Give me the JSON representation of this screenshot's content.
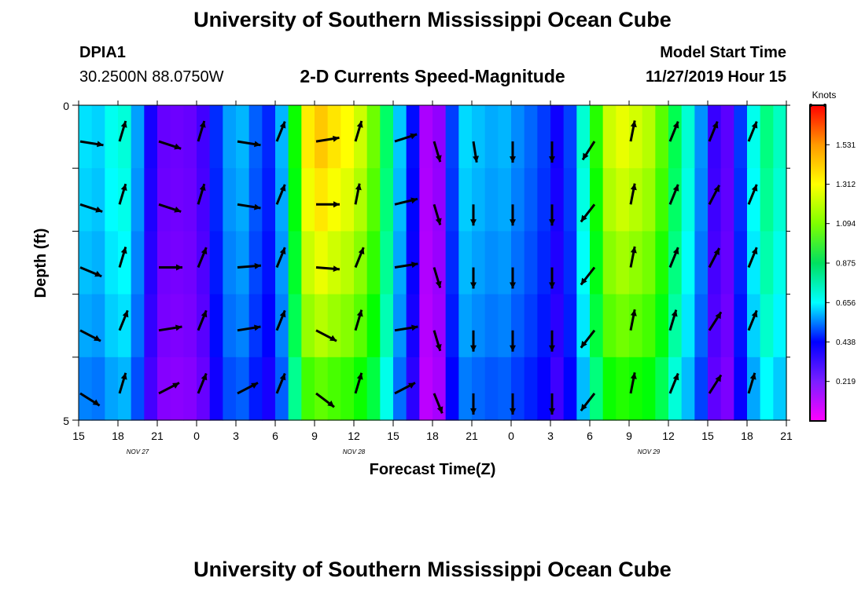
{
  "header": {
    "title": "University of Southern Mississippi Ocean Cube",
    "station": "DPIA1",
    "coords": "30.2500N 88.0750W",
    "plot_title": "2-D Currents Speed-Magnitude",
    "model_label": "Model Start Time",
    "model_time": "11/27/2019 Hour 15"
  },
  "footer": {
    "title": "University of Southern Mississippi Ocean Cube"
  },
  "chart_data": {
    "type": "heatmap",
    "title": "2-D Currents Speed-Magnitude",
    "xlabel": "Forecast Time(Z)",
    "ylabel": "Depth (ft)",
    "ylim": [
      0,
      5
    ],
    "y_ticks": [
      "0",
      "5"
    ],
    "x_tick_labels": [
      "15",
      "18",
      "21",
      "0",
      "3",
      "6",
      "9",
      "12",
      "15",
      "18",
      "21",
      "0",
      "3",
      "6",
      "9",
      "12",
      "15",
      "18",
      "21"
    ],
    "date_labels": [
      "NOV 27",
      "NOV 28",
      "NOV 29"
    ],
    "x_hours": [
      0,
      1,
      2,
      3,
      4,
      5,
      6,
      7,
      8,
      9,
      10,
      11,
      12,
      13,
      14,
      15,
      16,
      17,
      18,
      19,
      20,
      21,
      22,
      23,
      24,
      25,
      26,
      27,
      28,
      29,
      30,
      31,
      32,
      33,
      34,
      35,
      36,
      37,
      38,
      39,
      40,
      41,
      42,
      43,
      44,
      45,
      46,
      47,
      48,
      49,
      50,
      51,
      52,
      53,
      54
    ],
    "speed_knots_by_hour": [
      0.7,
      0.62,
      0.66,
      0.78,
      0.72,
      0.42,
      0.22,
      0.2,
      0.2,
      0.22,
      0.3,
      0.52,
      0.62,
      0.58,
      0.38,
      0.42,
      0.78,
      1.35,
      1.5,
      1.45,
      1.42,
      1.38,
      1.28,
      1.12,
      0.7,
      0.55,
      0.18,
      0.05,
      0.25,
      0.62,
      0.68,
      0.55,
      0.62,
      0.58,
      0.5,
      0.48,
      0.38,
      0.28,
      0.6,
      0.92,
      1.28,
      1.38,
      1.36,
      1.32,
      1.28,
      1.06,
      0.82,
      0.7,
      0.4,
      0.15,
      0.3,
      0.55,
      0.9,
      0.85,
      0.72
    ],
    "depth_levels": 5,
    "depth_factors": [
      1.0,
      0.97,
      0.93,
      0.88,
      0.8
    ],
    "colorbar": {
      "unit": "Knots",
      "ticks": [
        "1.531",
        "1.312",
        "1.094",
        "0.875",
        "0.656",
        "0.438",
        "0.219"
      ],
      "tick_values": [
        1.531,
        1.312,
        1.094,
        0.875,
        0.656,
        0.438,
        0.219
      ],
      "range": [
        0,
        1.75
      ]
    },
    "arrow_hours": [
      0,
      3,
      6,
      9,
      12,
      15,
      18,
      21,
      24,
      27,
      30,
      33,
      36,
      39,
      42,
      45,
      48,
      51
    ],
    "arrow_direction_deg": [
      [
        100,
        15,
        110,
        15,
        100,
        20,
        80,
        15,
        70,
        165,
        172,
        180,
        180,
        210,
        10,
        20,
        20,
        20
      ],
      [
        110,
        15,
        110,
        15,
        100,
        20,
        90,
        10,
        75,
        165,
        180,
        180,
        180,
        215,
        10,
        20,
        25,
        20
      ],
      [
        115,
        15,
        90,
        20,
        85,
        20,
        95,
        20,
        80,
        165,
        180,
        180,
        180,
        215,
        10,
        20,
        25,
        20
      ],
      [
        120,
        20,
        80,
        20,
        80,
        20,
        120,
        15,
        80,
        165,
        180,
        180,
        180,
        215,
        10,
        15,
        30,
        20
      ],
      [
        125,
        15,
        60,
        20,
        60,
        20,
        130,
        15,
        60,
        160,
        180,
        180,
        180,
        215,
        10,
        20,
        30,
        15
      ]
    ]
  }
}
